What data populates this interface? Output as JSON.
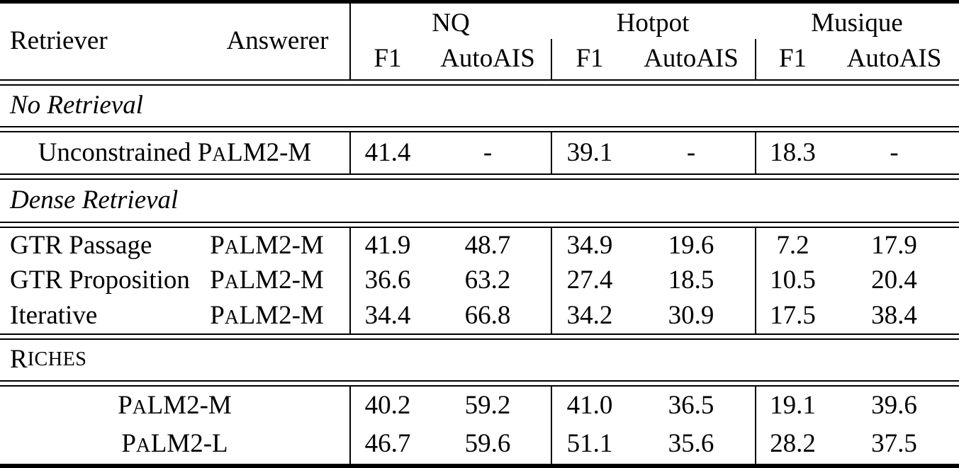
{
  "colors": {
    "text": "#000000",
    "background": "#ffffff",
    "rule": "#000000"
  },
  "table": {
    "header": {
      "retriever": "Retriever",
      "answerer": "Answerer",
      "groups": [
        {
          "label": "NQ",
          "cols": [
            "F1",
            "AutoAIS"
          ]
        },
        {
          "label": "Hotpot",
          "cols": [
            "F1",
            "AutoAIS"
          ]
        },
        {
          "label": "Musique",
          "cols": [
            "F1",
            "AutoAIS"
          ]
        }
      ]
    },
    "sections": [
      {
        "label": "No Retrieval",
        "style": "italic",
        "rows": [
          {
            "retriever": "Unconstrained",
            "answerer": "PaLM2-M",
            "span": true,
            "values": [
              "41.4",
              "-",
              "39.1",
              "-",
              "18.3",
              "-"
            ]
          }
        ]
      },
      {
        "label": "Dense Retrieval",
        "style": "italic",
        "rows": [
          {
            "retriever": "GTR Passage",
            "answerer": "PaLM2-M",
            "values": [
              "41.9",
              "48.7",
              "34.9",
              "19.6",
              "7.2",
              "17.9"
            ]
          },
          {
            "retriever": "GTR Proposition",
            "answerer": "PaLM2-M",
            "values": [
              "36.6",
              "63.2",
              "27.4",
              "18.5",
              "10.5",
              "20.4"
            ]
          },
          {
            "retriever": "Iterative",
            "answerer": "PaLM2-M",
            "values": [
              "34.4",
              "66.8",
              "34.2",
              "30.9",
              "17.5",
              "38.4"
            ]
          }
        ]
      },
      {
        "label": "Riches",
        "style": "smallcaps",
        "rows": [
          {
            "retriever": "",
            "answerer": "PaLM2-M",
            "span": true,
            "values": [
              "40.2",
              "59.2",
              "41.0",
              "36.5",
              "19.1",
              "39.6"
            ]
          },
          {
            "retriever": "",
            "answerer": "PaLM2-L",
            "span": true,
            "values": [
              "46.7",
              "59.6",
              "51.1",
              "35.6",
              "28.2",
              "37.5"
            ]
          }
        ]
      }
    ]
  }
}
